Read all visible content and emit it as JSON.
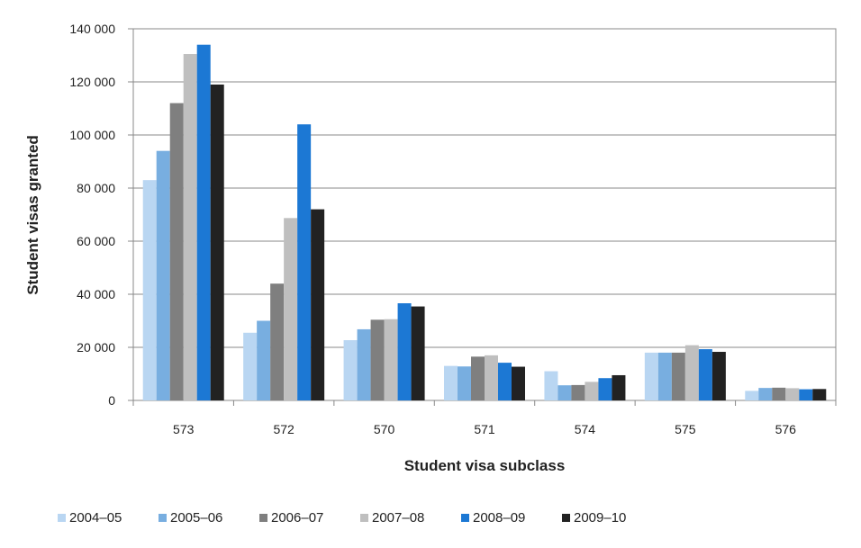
{
  "chart_data": {
    "type": "bar",
    "title": "",
    "xlabel": "Student visa subclass",
    "ylabel": "Student visas granted",
    "ylim": [
      0,
      140000
    ],
    "yticks": [
      0,
      20000,
      40000,
      60000,
      80000,
      100000,
      120000,
      140000
    ],
    "ytick_labels": [
      "0",
      "20 000",
      "40 000",
      "60 000",
      "80 000",
      "100 000",
      "120 000",
      "140 000"
    ],
    "grid": true,
    "legend_position": "bottom",
    "categories": [
      "573",
      "572",
      "570",
      "571",
      "574",
      "575",
      "576"
    ],
    "series": [
      {
        "name": "2004–05",
        "color": "#b9d6f2",
        "values": [
          83000,
          25500,
          22700,
          13000,
          11000,
          18000,
          3600
        ]
      },
      {
        "name": "2005–06",
        "color": "#78aee0",
        "values": [
          94000,
          30000,
          26800,
          12800,
          5700,
          18000,
          4700
        ]
      },
      {
        "name": "2006–07",
        "color": "#7f7f7f",
        "values": [
          112000,
          44000,
          30400,
          16500,
          5800,
          18000,
          4800
        ]
      },
      {
        "name": "2007–08",
        "color": "#bfbfbf",
        "values": [
          130500,
          68700,
          30600,
          17000,
          7000,
          20800,
          4600
        ]
      },
      {
        "name": "2008–09",
        "color": "#1c78d4",
        "values": [
          134000,
          104000,
          36600,
          14200,
          8400,
          19300,
          4200
        ]
      },
      {
        "name": "2009–10",
        "color": "#222222",
        "values": [
          119000,
          72000,
          35400,
          12700,
          9500,
          18300,
          4300
        ]
      }
    ]
  }
}
